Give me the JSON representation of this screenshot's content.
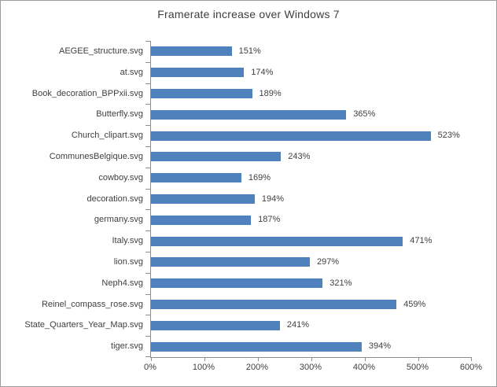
{
  "chart_data": {
    "type": "bar",
    "orientation": "horizontal",
    "title": "Framerate increase over Windows 7",
    "xlabel": "",
    "ylabel": "",
    "categories": [
      "AEGEE_structure.svg",
      "at.svg",
      "Book_decoration_BPPxii.svg",
      "Butterfly.svg",
      "Church_clipart.svg",
      "CommunesBelgique.svg",
      "cowboy.svg",
      "decoration.svg",
      "germany.svg",
      "Italy.svg",
      "lion.svg",
      "Neph4.svg",
      "Reinel_compass_rose.svg",
      "State_Quarters_Year_Map.svg",
      "tiger.svg"
    ],
    "values": [
      151,
      174,
      189,
      365,
      523,
      243,
      169,
      194,
      187,
      471,
      297,
      321,
      459,
      241,
      394
    ],
    "data_labels": [
      "151%",
      "174%",
      "189%",
      "365%",
      "523%",
      "243%",
      "169%",
      "194%",
      "187%",
      "471%",
      "297%",
      "321%",
      "459%",
      "241%",
      "394%"
    ],
    "xlim": [
      0,
      600
    ],
    "x_tick_labels": [
      "0%",
      "100%",
      "200%",
      "300%",
      "400%",
      "500%",
      "600%"
    ],
    "grid": false,
    "legend": false,
    "bar_color": "#4F81BD",
    "axis_color": "#8E8E8E",
    "text_color": "#3F3F3F"
  }
}
